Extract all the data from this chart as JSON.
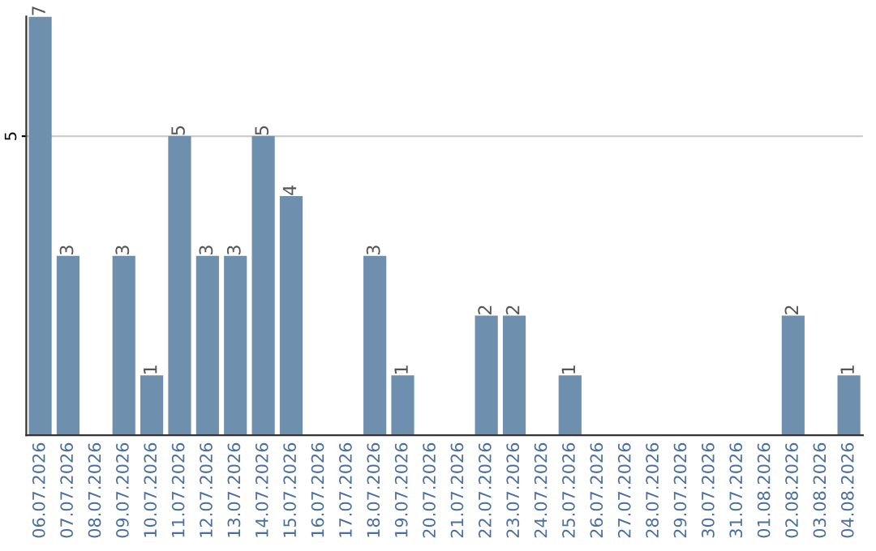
{
  "chart_data": {
    "type": "bar",
    "categories": [
      "06.07.2026",
      "07.07.2026",
      "08.07.2026",
      "09.07.2026",
      "10.07.2026",
      "11.07.2026",
      "12.07.2026",
      "13.07.2026",
      "14.07.2026",
      "15.07.2026",
      "16.07.2026",
      "17.07.2026",
      "18.07.2026",
      "19.07.2026",
      "20.07.2026",
      "21.07.2026",
      "22.07.2026",
      "23.07.2026",
      "24.07.2026",
      "25.07.2026",
      "26.07.2026",
      "27.07.2026",
      "28.07.2026",
      "29.07.2026",
      "30.07.2026",
      "31.07.2026",
      "01.08.2026",
      "02.08.2026",
      "03.08.2026",
      "04.08.2026"
    ],
    "values": [
      7,
      3,
      0,
      3,
      1,
      5,
      3,
      3,
      5,
      4,
      0,
      0,
      3,
      1,
      0,
      0,
      2,
      2,
      0,
      1,
      0,
      0,
      0,
      0,
      0,
      0,
      0,
      2,
      0,
      1
    ],
    "value_labels": [
      "7",
      "3",
      null,
      "3",
      "1",
      "5",
      "3",
      "3",
      "5",
      "4",
      null,
      null,
      "3",
      "1",
      null,
      null,
      "2",
      "2",
      null,
      "1",
      null,
      null,
      null,
      null,
      null,
      null,
      null,
      "2",
      null,
      "1"
    ],
    "color": "#6f8fae",
    "ylim": [
      0,
      7
    ],
    "yticks": [
      5
    ],
    "grid": "y"
  }
}
